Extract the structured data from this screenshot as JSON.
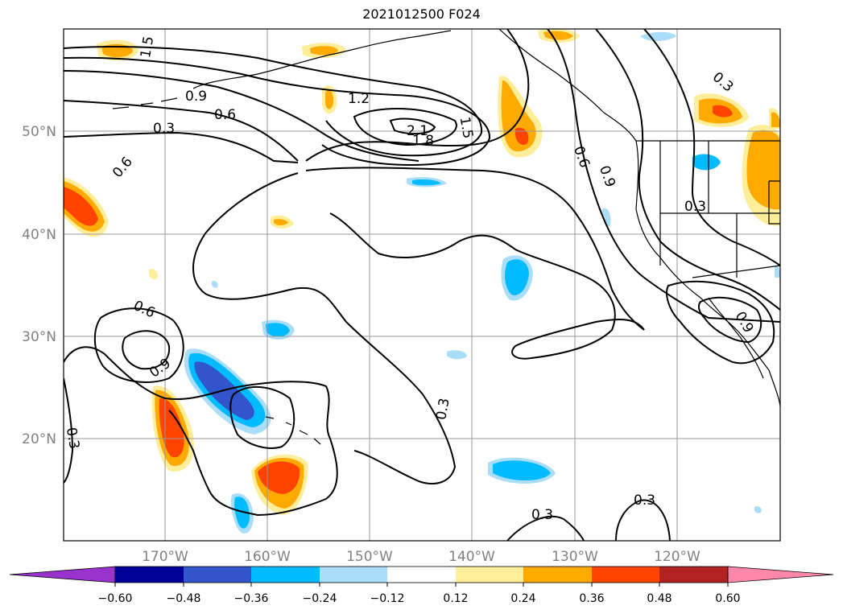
{
  "title": "2021012500 F024",
  "map": {
    "lon_labels": [
      "170°W",
      "160°W",
      "150°W",
      "140°W",
      "130°W",
      "120°W"
    ],
    "lat_labels": [
      "50°N",
      "40°N",
      "30°N",
      "20°N"
    ],
    "contour_labels": [
      "1.5",
      "1.2",
      "0.9",
      "0.6",
      "0.3",
      "2.1",
      "1.8",
      "1.5",
      "0.6",
      "0.9",
      "0.3",
      "0.6",
      "0.9",
      "0.3",
      "0.3",
      "0.3",
      "0.3",
      "0.6",
      "0.9",
      "0.3"
    ],
    "colors": {
      "neg_0_60": "#9933cc",
      "neg_0_48": "#000099",
      "neg_0_36": "#3355cc",
      "neg_0_24": "#00bbff",
      "neg_0_12": "#aaddf7",
      "neutral": "#ffffff",
      "pos_0_12": "#ffee99",
      "pos_0_24": "#ffaa00",
      "pos_0_36": "#ff4400",
      "pos_0_48": "#b22222",
      "pos_0_60": "#ff88aa"
    }
  },
  "colorbar": {
    "ticks": [
      "−0.60",
      "−0.48",
      "−0.36",
      "−0.24",
      "−0.12",
      "0.12",
      "0.24",
      "0.36",
      "0.48",
      "0.60"
    ],
    "colors": [
      "#9933cc",
      "#000099",
      "#3355cc",
      "#00bbff",
      "#aaddf7",
      "#ffffff",
      "#ffee99",
      "#ffaa00",
      "#ff4400",
      "#b22222",
      "#ff88aa"
    ]
  }
}
